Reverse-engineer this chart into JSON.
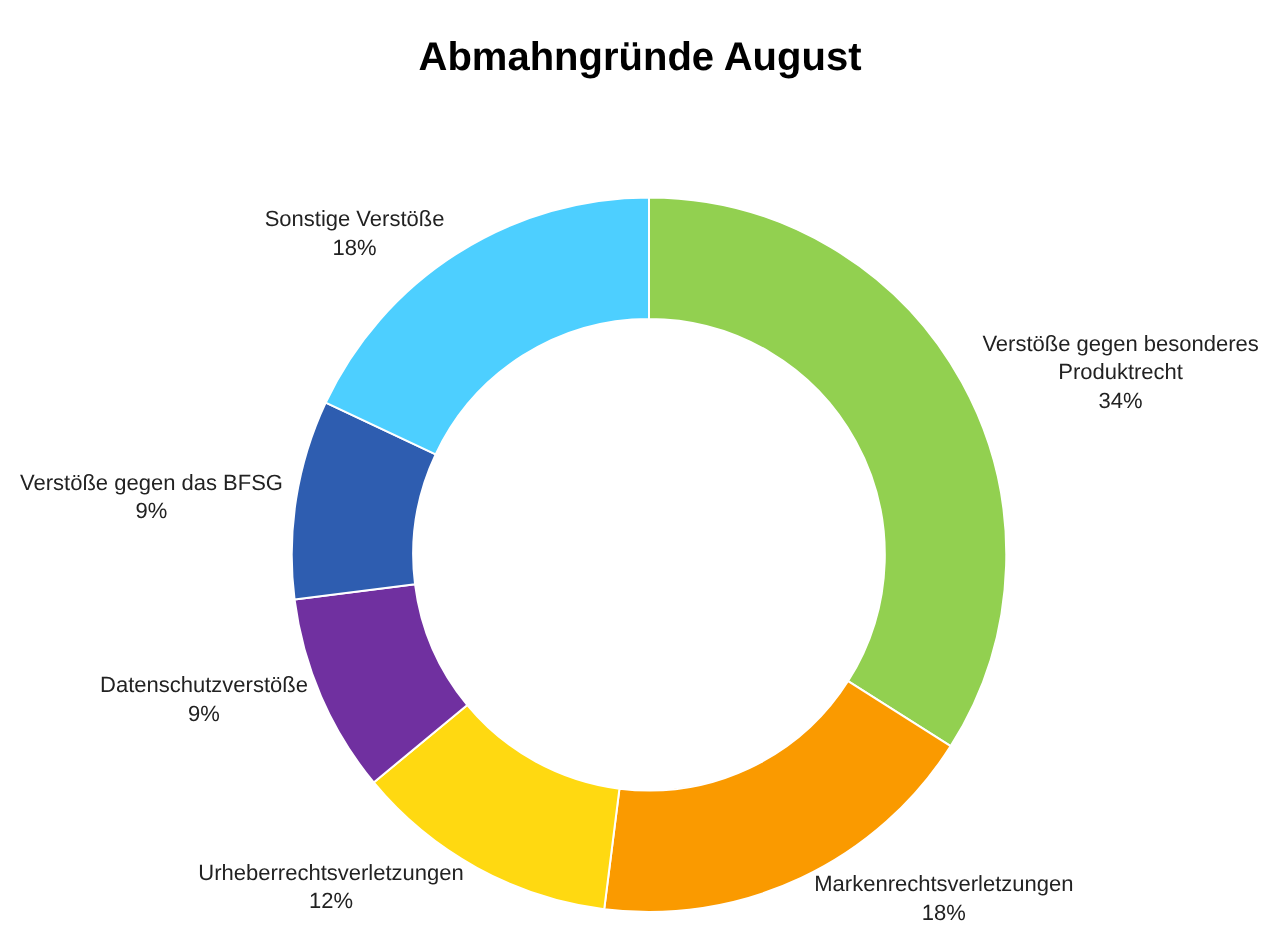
{
  "chart_data": {
    "type": "donut",
    "title": "Abmahngründe August",
    "categories": [
      "Verstöße gegen besonderes Produktrecht",
      "Markenrechtsverletzungen",
      "Urheberrechtsverletzungen",
      "Datenschutzverstöße",
      "Verstöße gegen das BFSG",
      "Sonstige Verstöße"
    ],
    "values": [
      34,
      18,
      12,
      9,
      9,
      18
    ],
    "value_labels": [
      "34%",
      "18%",
      "12%",
      "9%",
      "9%",
      "18%"
    ],
    "colors": [
      "#92d050",
      "#fa9a00",
      "#ffd911",
      "#7030a0",
      "#2e5db0",
      "#4dcfff"
    ],
    "legend": false
  }
}
